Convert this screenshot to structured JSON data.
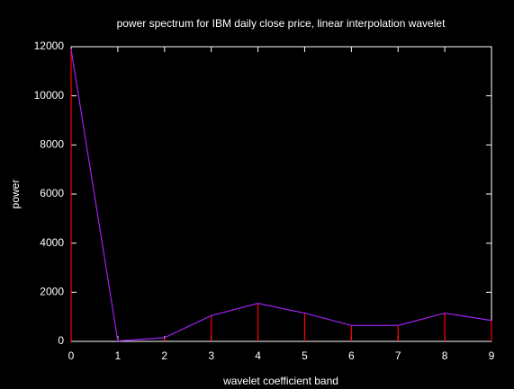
{
  "chart_data": {
    "type": "line",
    "title": "power spectrum for IBM daily close price, linear interpolation wavelet",
    "x_label": "wavelet coefficient band",
    "y_label": "power",
    "x": [
      0,
      1,
      2,
      3,
      4,
      5,
      6,
      7,
      8,
      9
    ],
    "values": [
      11900,
      20,
      150,
      1050,
      1550,
      1150,
      650,
      650,
      1150,
      850
    ],
    "impulse_color": "#ff0000",
    "line_color": "#a020f0",
    "xlim": [
      0,
      9
    ],
    "xticks": [
      0,
      1,
      2,
      3,
      4,
      5,
      6,
      7,
      8,
      9
    ],
    "ylim": [
      0,
      12000
    ],
    "yticks": [
      0,
      2000,
      4000,
      6000,
      8000,
      10000,
      12000
    ],
    "grid": false
  }
}
